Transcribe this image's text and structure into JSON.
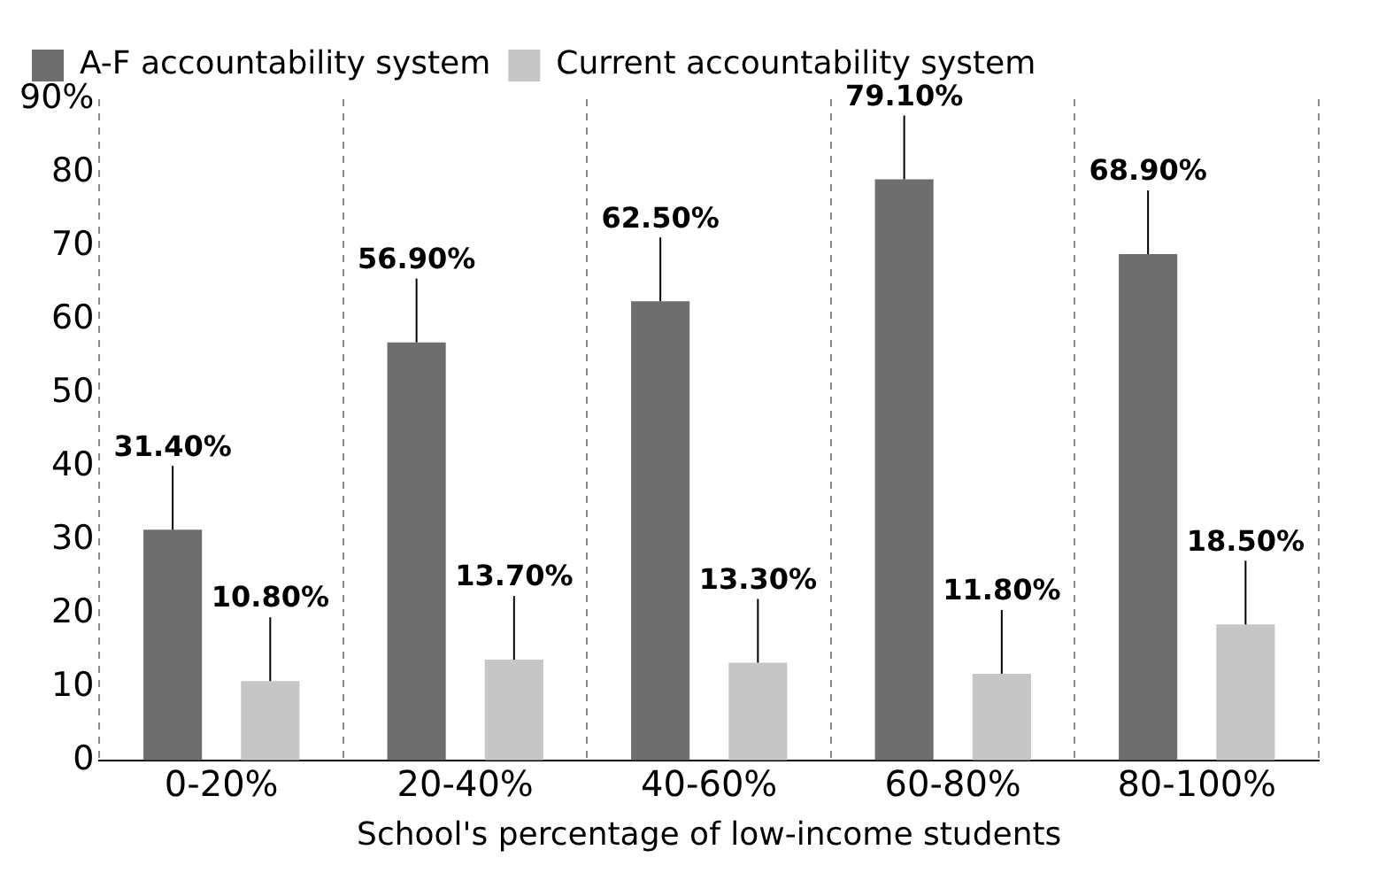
{
  "chart_data": {
    "type": "bar",
    "categories": [
      "0-20%",
      "20-40%",
      "40-60%",
      "60-80%",
      "80-100%"
    ],
    "xlabel": "School's percentage of low-income students",
    "series": [
      {
        "name": "A-F accountability system",
        "color": "#6e6e6e",
        "values": [
          31.4,
          56.9,
          62.5,
          79.1,
          68.9
        ],
        "value_labels": [
          "31.40%",
          "56.90%",
          "62.50%",
          "79.10%",
          "68.90%"
        ]
      },
      {
        "name": "Current accountability system",
        "color": "#c6c6c6",
        "values": [
          10.8,
          13.7,
          13.3,
          11.8,
          18.5
        ],
        "value_labels": [
          "10.80%",
          "13.70%",
          "13.30%",
          "11.80%",
          "18.50%"
        ]
      }
    ],
    "ylim": [
      0,
      90
    ],
    "yticks": [
      0,
      10,
      20,
      30,
      40,
      50,
      60,
      70,
      80,
      {
        "value": 90,
        "label": "90%"
      }
    ],
    "grid": "x",
    "legend": "top left"
  }
}
